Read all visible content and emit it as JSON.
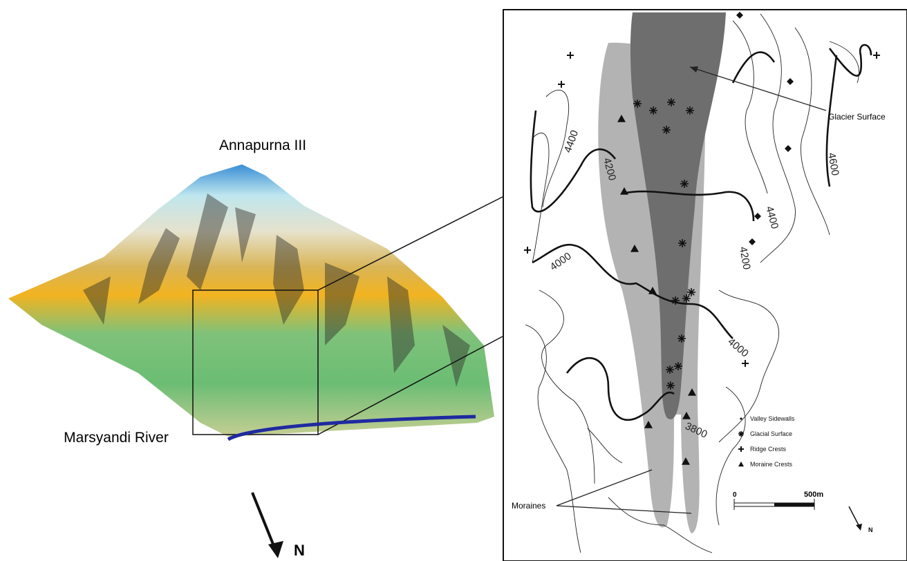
{
  "left_panel": {
    "peak_label": "Annapurna III",
    "river_label": "Marsyandi River",
    "north_label": "N"
  },
  "right_panel": {
    "contour_labels": [
      "4400",
      "4200",
      "4000",
      "3800",
      "4600",
      "4400",
      "4200",
      "4000"
    ],
    "annotations": {
      "glacier_surface": "Glacier Surface",
      "moraines": "Moraines"
    },
    "legend": [
      "Valley Sidewalls",
      "Glacial Surface",
      "Ridge Crests",
      "Moraine Crests"
    ],
    "scale_bar": {
      "start": "0",
      "end": "500m"
    },
    "north_label": "N"
  }
}
